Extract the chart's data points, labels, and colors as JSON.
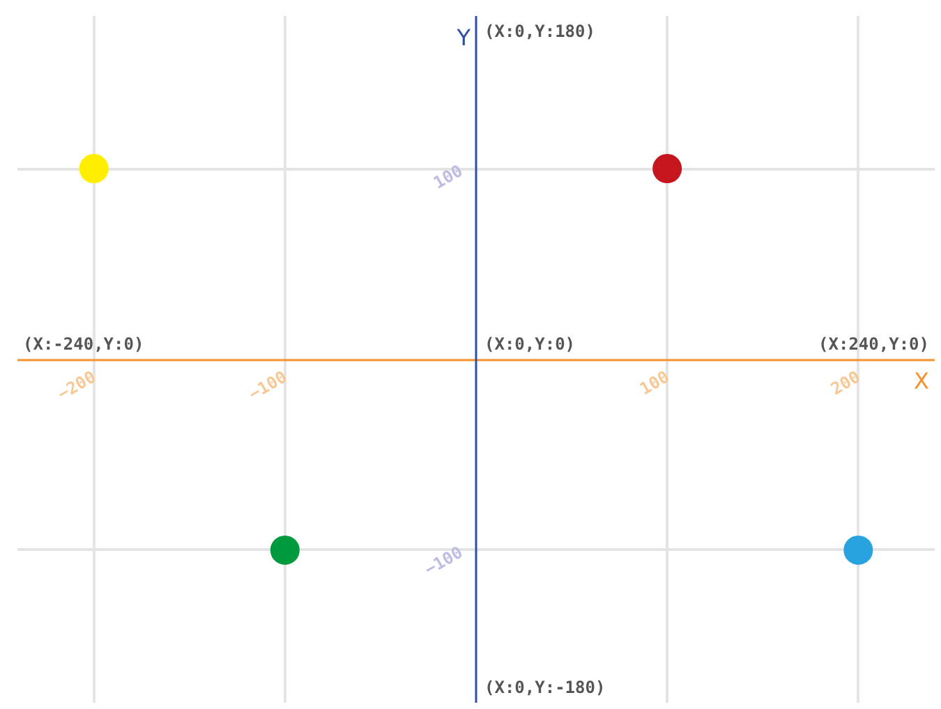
{
  "chart_data": {
    "type": "scatter",
    "xlabel": "X",
    "ylabel": "Y",
    "x": [
      -200,
      100,
      -100,
      200
    ],
    "values": [
      100,
      100,
      -100,
      -100
    ],
    "colors": [
      "#ffee00",
      "#c4161c",
      "#009a3e",
      "#29a3e0"
    ],
    "marker": "circle",
    "grid": true,
    "xlim": [
      -240,
      240
    ],
    "ylim": [
      -180,
      180
    ],
    "xticks": [
      -200,
      -100,
      100,
      200
    ],
    "yticks": [
      -100,
      100
    ],
    "annotations": [
      "(X:-240,Y:0)",
      "(X:0,Y:0)",
      "(X:240,Y:0)",
      "(X:0,Y:180)",
      "(X:0,Y:-180)"
    ]
  }
}
